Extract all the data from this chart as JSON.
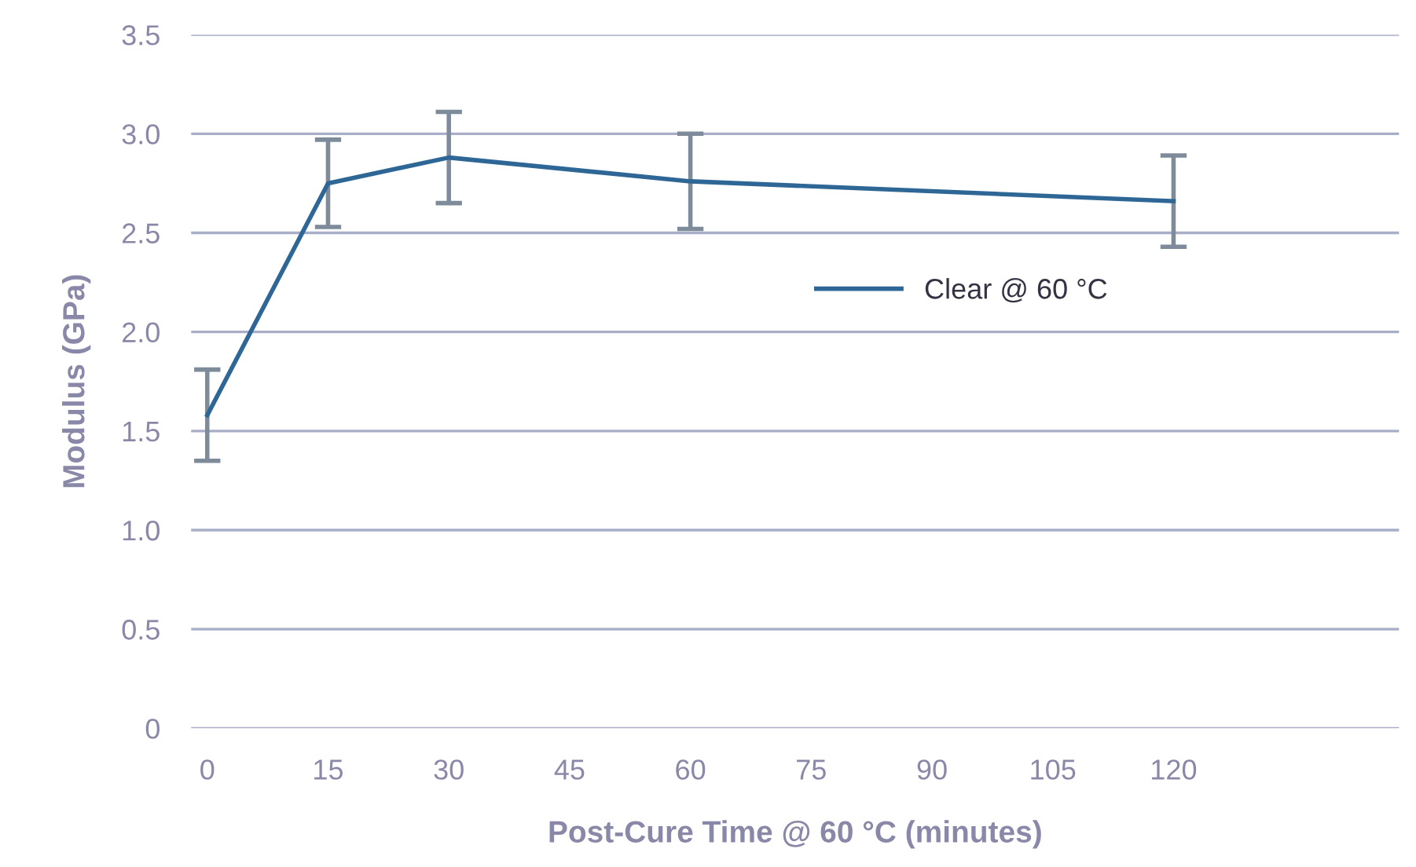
{
  "chart_data": {
    "type": "line",
    "xlabel": "Post-Cure Time @ 60 °C (minutes)",
    "ylabel": "Modulus (GPa)",
    "x": [
      0,
      15,
      30,
      60,
      120
    ],
    "series": [
      {
        "name": "Clear @ 60 °C",
        "color": "#2e6796",
        "values": [
          1.58,
          2.75,
          2.88,
          2.76,
          2.66
        ],
        "errors": [
          0.23,
          0.22,
          0.23,
          0.24,
          0.23
        ]
      }
    ],
    "xlim": [
      -2,
      148
    ],
    "xticks": [
      0,
      15,
      30,
      45,
      60,
      75,
      90,
      105,
      120
    ],
    "ylim": [
      0,
      3.5
    ],
    "yticks": [
      0,
      0.5,
      {
        "value": 1,
        "label": "1.0"
      },
      1.5,
      {
        "value": 2,
        "label": "2.0"
      },
      2.5,
      {
        "value": 3,
        "label": "3.0"
      },
      3.5
    ],
    "grid": "y",
    "legend": "right",
    "marker": "none",
    "line_style": "solid"
  }
}
